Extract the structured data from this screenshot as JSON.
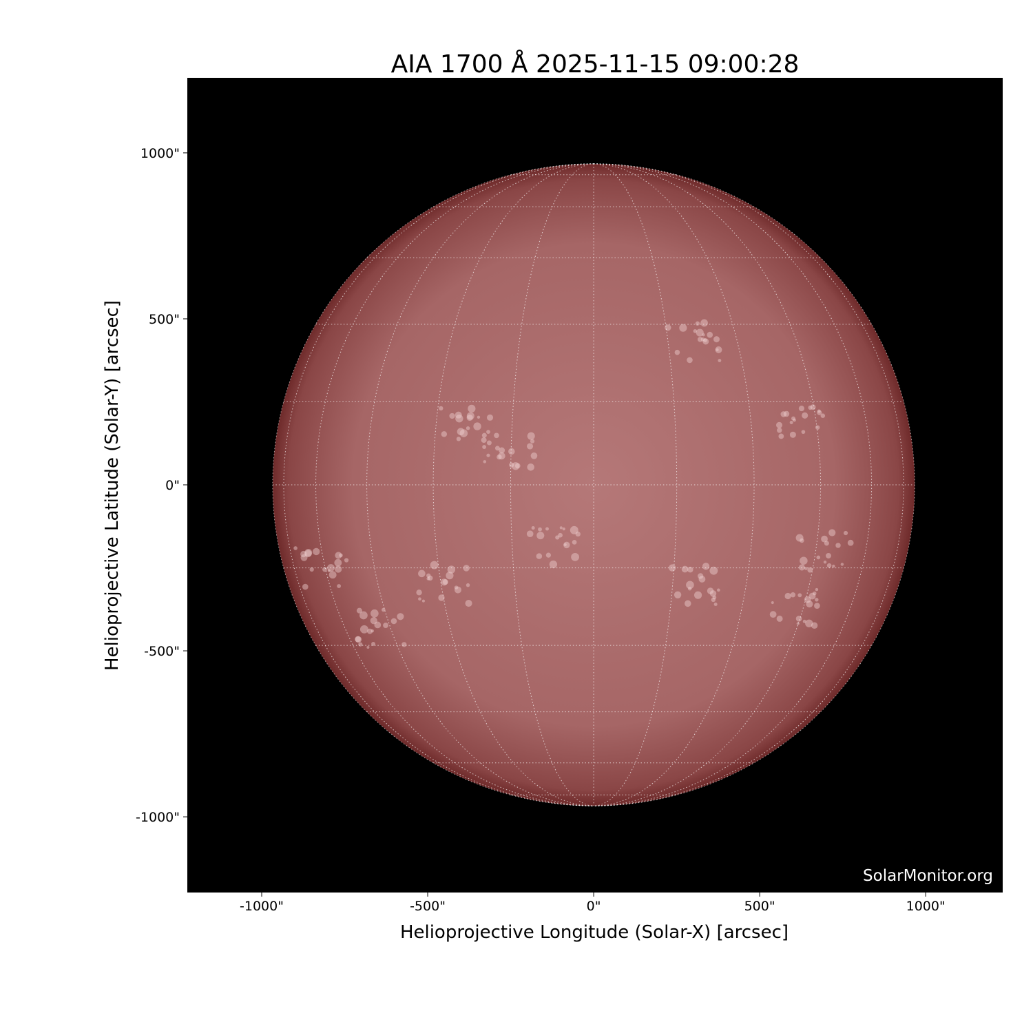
{
  "chart_data": {
    "type": "image",
    "title": "AIA 1700 Å 2025-11-15 09:00:28",
    "xlabel": "Helioprojective Longitude (Solar-X) [arcsec]",
    "ylabel": "Helioprojective Latitude (Solar-Y) [arcsec]",
    "xlim": [
      -1224,
      1232
    ],
    "ylim": [
      -1228,
      1226
    ],
    "xticks": [
      -1000,
      -500,
      0,
      500,
      1000
    ],
    "xtick_labels": [
      "-1000\"",
      "-500\"",
      "0\"",
      "500\"",
      "1000\""
    ],
    "yticks": [
      1000,
      500,
      0,
      -500,
      -1000
    ],
    "ytick_labels": [
      "1000\"",
      "500\"",
      "0\"",
      "-500\"",
      "-1000\""
    ],
    "solar_radius_arcsec": 967,
    "grid": true,
    "grid_spacing_deg": 15,
    "colors": {
      "background": "#000000",
      "disk_center": "#b57878",
      "disk_limb": "#6e2a2a",
      "grid": "#ffffff"
    }
  },
  "watermark": "SolarMonitor.org"
}
